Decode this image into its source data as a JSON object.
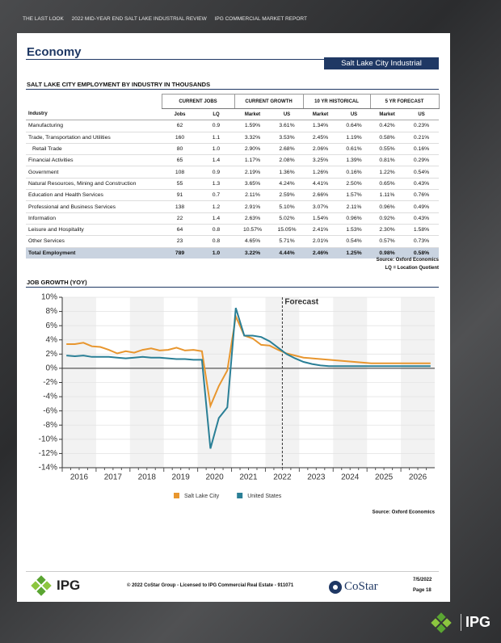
{
  "header": {
    "items": [
      "THE LAST LOOK",
      "2022 MID-YEAR END SALT LAKE INDUSTRIAL REVIEW",
      "IPG COMMERCIAL MARKET REPORT"
    ]
  },
  "title": "Economy",
  "badge": "Salt Lake City Industrial",
  "table": {
    "title": "SALT LAKE CITY EMPLOYMENT BY INDUSTRY IN THOUSANDS",
    "groups": [
      "CURRENT JOBS",
      "CURRENT GROWTH",
      "10 YR HISTORICAL",
      "5 YR FORECAST"
    ],
    "columns": [
      "Industry",
      "Jobs",
      "LQ",
      "Market",
      "US",
      "Market",
      "US",
      "Market",
      "US"
    ],
    "rows": [
      [
        "Manufacturing",
        "62",
        "0.9",
        "1.59%",
        "3.61%",
        "1.34%",
        "0.64%",
        "0.42%",
        "0.23%"
      ],
      [
        "Trade, Transportation and Utilities",
        "160",
        "1.1",
        "3.32%",
        "3.53%",
        "2.45%",
        "1.19%",
        "0.58%",
        "0.21%"
      ],
      [
        "Retail Trade",
        "80",
        "1.0",
        "2.90%",
        "2.68%",
        "2.06%",
        "0.61%",
        "0.55%",
        "0.16%"
      ],
      [
        "Financial Activities",
        "65",
        "1.4",
        "1.17%",
        "2.08%",
        "3.25%",
        "1.39%",
        "0.81%",
        "0.29%"
      ],
      [
        "Government",
        "108",
        "0.9",
        "2.19%",
        "1.36%",
        "1.26%",
        "0.16%",
        "1.22%",
        "0.54%"
      ],
      [
        "Natural Resources, Mining and Construction",
        "55",
        "1.3",
        "3.65%",
        "4.24%",
        "4.41%",
        "2.50%",
        "0.65%",
        "0.43%"
      ],
      [
        "Education and Health Services",
        "91",
        "0.7",
        "2.11%",
        "2.59%",
        "2.66%",
        "1.57%",
        "1.11%",
        "0.76%"
      ],
      [
        "Professional and Business Services",
        "138",
        "1.2",
        "2.91%",
        "5.10%",
        "3.07%",
        "2.11%",
        "0.96%",
        "0.49%"
      ],
      [
        "Information",
        "22",
        "1.4",
        "2.63%",
        "5.02%",
        "1.54%",
        "0.96%",
        "0.92%",
        "0.43%"
      ],
      [
        "Leisure and Hospitality",
        "64",
        "0.8",
        "10.57%",
        "15.05%",
        "2.41%",
        "1.53%",
        "2.30%",
        "1.58%"
      ],
      [
        "Other Services",
        "23",
        "0.8",
        "4.65%",
        "5.71%",
        "2.01%",
        "0.54%",
        "0.57%",
        "0.73%"
      ]
    ],
    "total": [
      "Total Employment",
      "789",
      "1.0",
      "3.22%",
      "4.44%",
      "2.46%",
      "1.25%",
      "0.98%",
      "0.58%"
    ],
    "notes": [
      "Source: Oxford Economics",
      "LQ = Location Quotient"
    ]
  },
  "chart_data": {
    "type": "line",
    "title": "JOB GROWTH (YOY)",
    "categories": [
      "2016",
      null,
      null,
      null,
      "2017",
      null,
      null,
      null,
      "2018",
      null,
      null,
      null,
      "2019",
      null,
      null,
      null,
      "2020",
      null,
      null,
      null,
      "2021",
      null,
      null,
      null,
      "2022",
      null,
      null,
      null,
      "2023",
      null,
      null,
      null,
      "2024",
      null,
      null,
      null,
      "2025",
      null,
      null,
      null,
      "2026",
      null,
      null,
      null
    ],
    "series": [
      {
        "name": "Salt Lake City",
        "color": "#e8962e",
        "values": [
          3.4,
          3.4,
          3.6,
          3.1,
          3.0,
          2.6,
          2.1,
          2.4,
          2.2,
          2.6,
          2.8,
          2.5,
          2.6,
          2.9,
          2.5,
          2.6,
          2.4,
          -5.3,
          -2.5,
          -0.3,
          7.3,
          4.6,
          4.2,
          3.3,
          3.2,
          2.6,
          2.1,
          1.8,
          1.5,
          1.4,
          1.3,
          1.2,
          1.1,
          1.0,
          0.9,
          0.8,
          0.7,
          0.7,
          0.7,
          0.7,
          0.7,
          0.7,
          0.7,
          0.7
        ]
      },
      {
        "name": "United States",
        "color": "#2a7f96",
        "values": [
          1.8,
          1.7,
          1.8,
          1.6,
          1.6,
          1.6,
          1.5,
          1.4,
          1.5,
          1.6,
          1.5,
          1.5,
          1.4,
          1.3,
          1.3,
          1.2,
          1.2,
          -11.3,
          -7.0,
          -5.5,
          8.5,
          4.6,
          4.6,
          4.4,
          3.8,
          2.9,
          2.0,
          1.4,
          0.9,
          0.6,
          0.4,
          0.3,
          0.3,
          0.3,
          0.3,
          0.3,
          0.3,
          0.3,
          0.3,
          0.3,
          0.3,
          0.3,
          0.3,
          0.3
        ]
      }
    ],
    "ylim": [
      -14,
      10
    ],
    "yticks": [
      {
        "value": -14,
        "label": "-14%"
      },
      {
        "value": -12,
        "label": "-12%"
      },
      {
        "value": -10,
        "label": "-10%"
      },
      {
        "value": -8,
        "label": "-8%"
      },
      {
        "value": -6,
        "label": "-6%"
      },
      {
        "value": -4,
        "label": "-4%"
      },
      {
        "value": -2,
        "label": "-2%"
      },
      {
        "value": 0,
        "label": "0%"
      },
      {
        "value": 2,
        "label": "2%"
      },
      {
        "value": 4,
        "label": "4%"
      },
      {
        "value": 6,
        "label": "6%"
      },
      {
        "value": 8,
        "label": "8%"
      },
      {
        "value": 10,
        "label": "10%"
      }
    ],
    "grid": true,
    "annotation": "Forecast",
    "legend": "bottom",
    "source": "Source: Oxford Economics"
  },
  "footer": {
    "logo": "IPG",
    "copyright": "© 2022 CoStar Group - Licensed to IPG Commercial Real Estate - 911071",
    "costar": "CoStar",
    "date": "7/5/2022",
    "page": "Page 18",
    "corner_logo": "IPG"
  }
}
